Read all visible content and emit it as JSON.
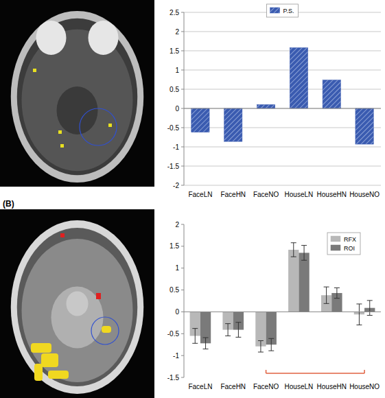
{
  "chart_data": [
    {
      "type": "bar",
      "categories": [
        "FaceLN",
        "FaceHN",
        "FaceNO",
        "HouseLN",
        "HouseHN",
        "HouseNO"
      ],
      "series": [
        {
          "name": "P.S.",
          "color": "#3a5bb0",
          "values": [
            -0.62,
            -0.86,
            0.1,
            1.58,
            0.74,
            -0.93
          ]
        }
      ],
      "ylim": [
        -2,
        2.5
      ],
      "yticks": [
        -2,
        -1.5,
        -1,
        -0.5,
        0,
        0.5,
        1,
        1.5,
        2,
        2.5
      ],
      "grid": true,
      "legend": "top"
    },
    {
      "type": "bar",
      "title": "(B)",
      "categories": [
        "FaceLN",
        "FaceHN",
        "FaceNO",
        "HouseLN",
        "HouseHN",
        "HouseNO"
      ],
      "series": [
        {
          "name": "RFX",
          "color": "#b8b8b8",
          "values": [
            -0.55,
            -0.41,
            -0.79,
            1.42,
            0.38,
            -0.06
          ],
          "errors": [
            0.17,
            0.14,
            0.13,
            0.16,
            0.19,
            0.24
          ]
        },
        {
          "name": "ROI",
          "color": "#7a7a7a",
          "values": [
            -0.72,
            -0.41,
            -0.75,
            1.35,
            0.43,
            0.09
          ],
          "errors": [
            0.13,
            0.17,
            0.14,
            0.17,
            0.12,
            0.17
          ]
        }
      ],
      "ylim": [
        -1.5,
        2
      ],
      "yticks": [
        -1.5,
        -1,
        -0.5,
        0,
        0.5,
        1,
        1.5,
        2
      ],
      "grid": false,
      "legend": "top-right"
    }
  ]
}
